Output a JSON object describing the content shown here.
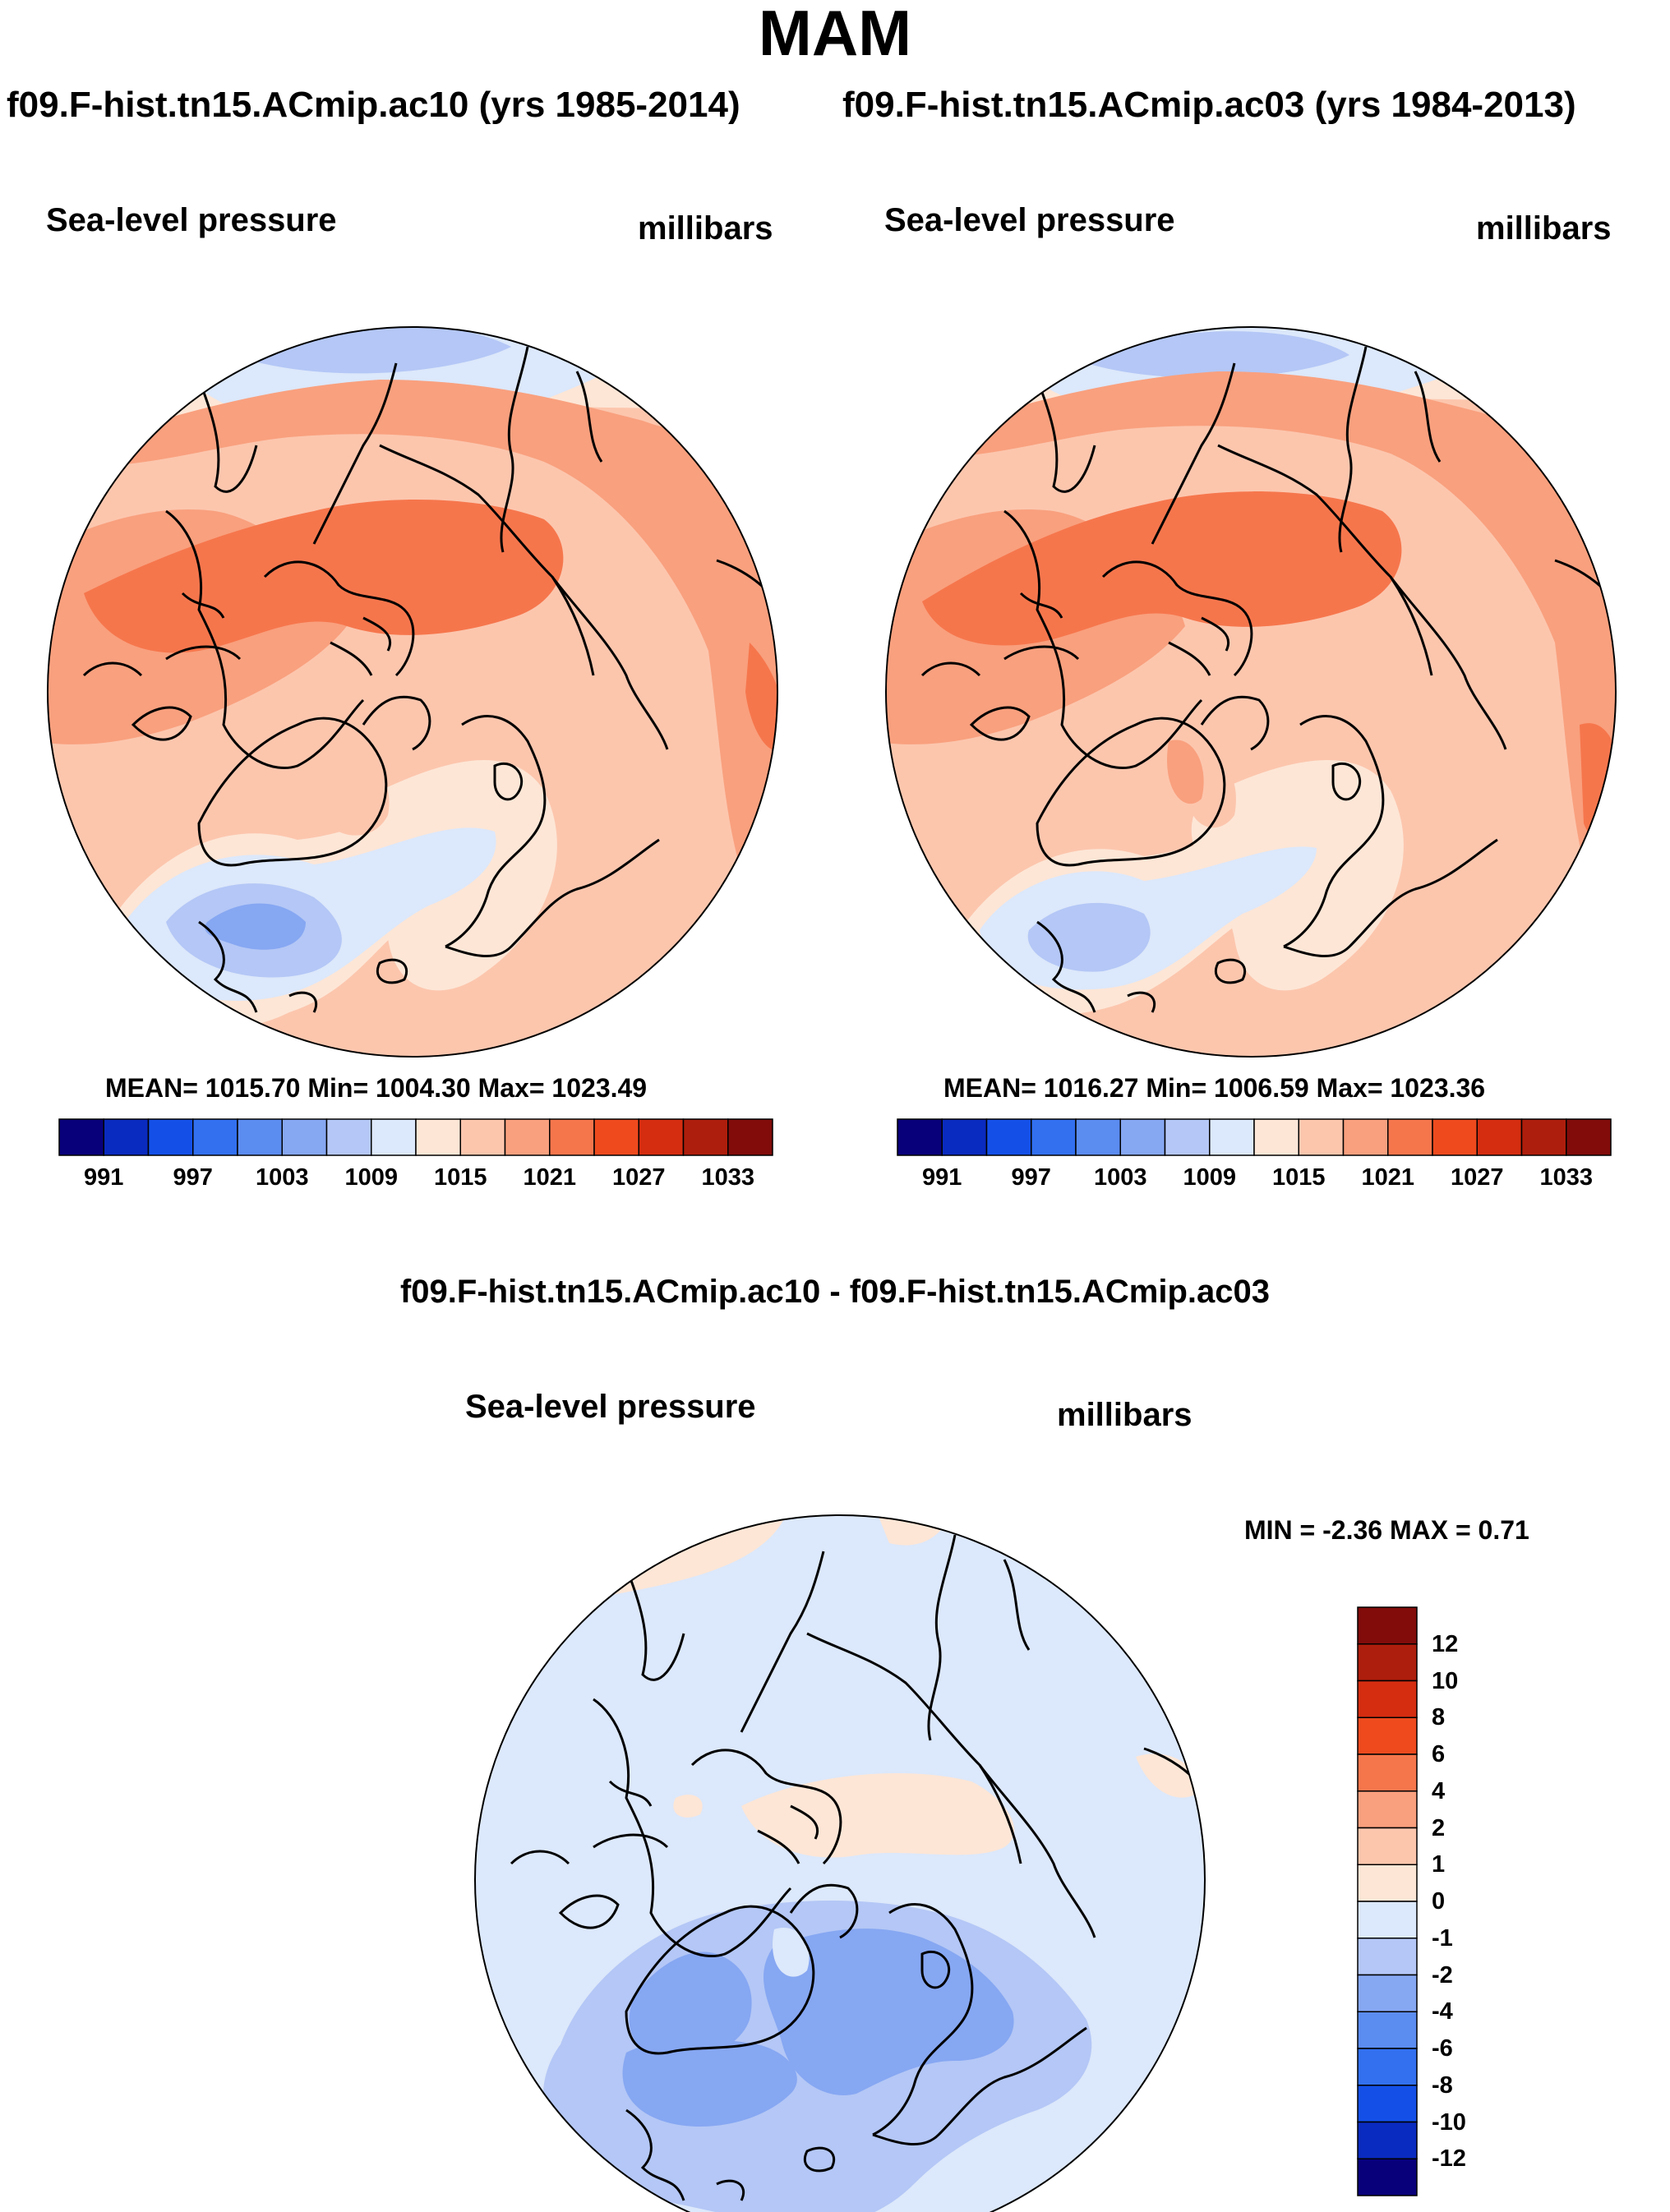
{
  "title": "MAM",
  "panels": [
    {
      "case_title": "f09.F-hist.tn15.ACmip.ac10 (yrs 1985-2014)",
      "variable": "Sea-level pressure",
      "units": "millibars",
      "stats": "MEAN= 1015.70  Min= 1004.30  Max= 1023.49"
    },
    {
      "case_title": "f09.F-hist.tn15.ACmip.ac03 (yrs 1984-2013)",
      "variable": "Sea-level pressure",
      "units": "millibars",
      "stats": "MEAN= 1016.27  Min= 1006.59  Max= 1023.36"
    }
  ],
  "diff": {
    "title": "f09.F-hist.tn15.ACmip.ac10 - f09.F-hist.tn15.ACmip.ac03",
    "variable": "Sea-level pressure",
    "units": "millibars",
    "minmax": "MIN =  -2.36 MAX =   0.71"
  },
  "colorbar_abs": {
    "colors": [
      "#08007a",
      "#0a2bbf",
      "#1450e8",
      "#3270f0",
      "#5b8cf0",
      "#86a7f2",
      "#b4c7f6",
      "#dce8fb",
      "#fde6d6",
      "#fcc6ad",
      "#f9a07e",
      "#f6764c",
      "#ee4a1e",
      "#d52d10",
      "#ae1e0c",
      "#810c0a"
    ],
    "labels": [
      "991",
      "997",
      "1003",
      "1009",
      "1015",
      "1021",
      "1027",
      "1033"
    ]
  },
  "colorbar_diff": {
    "colors": [
      "#810c0a",
      "#ae1e0c",
      "#d52d10",
      "#ee4a1e",
      "#f6764c",
      "#f9a07e",
      "#fcc6ad",
      "#fde6d6",
      "#dce8fb",
      "#b4c7f6",
      "#86a7f2",
      "#5b8cf0",
      "#3270f0",
      "#1450e8",
      "#0a2bbf",
      "#08007a"
    ],
    "labels": [
      "12",
      "10",
      "8",
      "6",
      "4",
      "2",
      "1",
      "0",
      "-1",
      "-2",
      "-4",
      "-6",
      "-8",
      "-10",
      "-12"
    ]
  },
  "map_colors": {
    "c1009": "#b4c7f6",
    "c1012": "#dce8fb",
    "c1015": "#fde6d6",
    "c1018": "#fcc6ad",
    "c1021": "#f9a07e",
    "c1024": "#f6764c",
    "c1006": "#86a7f2",
    "d_neg1": "#dce8fb",
    "d_neg2": "#b4c7f6",
    "d_neg4": "#86a7f2",
    "d_pos": "#fde6d6",
    "coast": "#000000"
  }
}
